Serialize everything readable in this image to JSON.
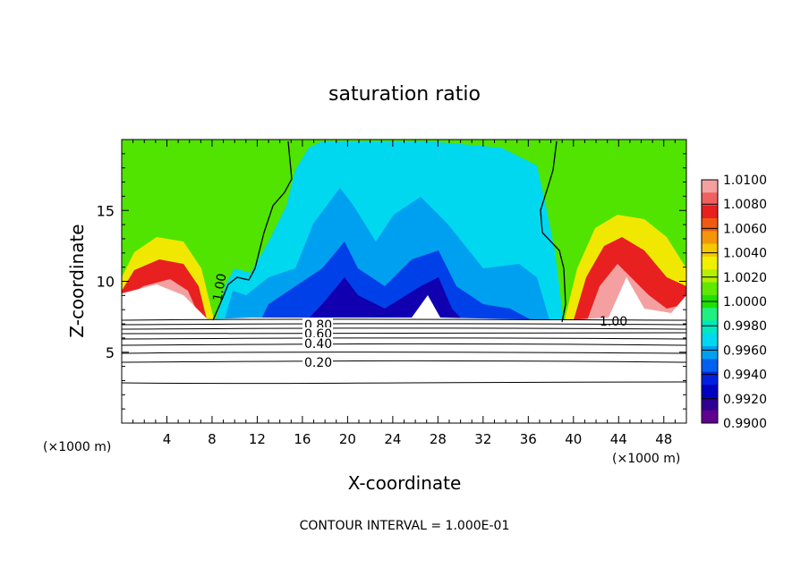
{
  "chart_data": {
    "type": "heatmap",
    "title": "saturation ratio",
    "xlabel": "X-coordinate",
    "ylabel": "Z-coordinate",
    "x_unit_left": "(×1000 m)",
    "x_unit_right": "(×1000 m)",
    "xlim": [
      0,
      50
    ],
    "ylim": [
      0,
      20
    ],
    "x_ticks": [
      4,
      8,
      12,
      16,
      20,
      24,
      28,
      32,
      36,
      40,
      44,
      48
    ],
    "x_tick_labels": [
      "4",
      "8",
      "12",
      "16",
      "20",
      "24",
      "28",
      "32",
      "36",
      "40",
      "44",
      "48"
    ],
    "y_ticks": [
      5,
      10,
      15
    ],
    "y_tick_labels": [
      "5",
      "10",
      "15"
    ],
    "colorbar": {
      "min": 0.99,
      "max": 1.01,
      "labels": [
        "1.0100",
        "1.0080",
        "1.0060",
        "1.0040",
        "1.0020",
        "1.0000",
        "0.9980",
        "0.9960",
        "0.9940",
        "0.9920",
        "0.9900"
      ],
      "colors": [
        "#f4a0a0",
        "#f06060",
        "#e82020",
        "#f05a10",
        "#f5960a",
        "#f5c800",
        "#f0f000",
        "#b4f000",
        "#60e800",
        "#20e000",
        "#20f080",
        "#00e8c0",
        "#00d8f0",
        "#00a0f0",
        "#0060f0",
        "#0020e0",
        "#0000c0",
        "#300090",
        "#600090"
      ]
    },
    "contour_labels": [
      {
        "text": "1.00",
        "value": 1.0
      },
      {
        "text": "1.00",
        "value": 1.0
      },
      {
        "text": "0.80",
        "value": 0.8
      },
      {
        "text": "0.60",
        "value": 0.6
      },
      {
        "text": "0.40",
        "value": 0.4
      },
      {
        "text": "0.20",
        "value": 0.2
      }
    ],
    "contour_interval_text": "CONTOUR INTERVAL = 1.000E-01",
    "contour_levels": [
      0.1,
      0.2,
      0.3,
      0.4,
      0.5,
      0.6,
      0.7,
      0.8,
      0.9,
      1.0
    ],
    "grid": false,
    "legend": "right"
  }
}
